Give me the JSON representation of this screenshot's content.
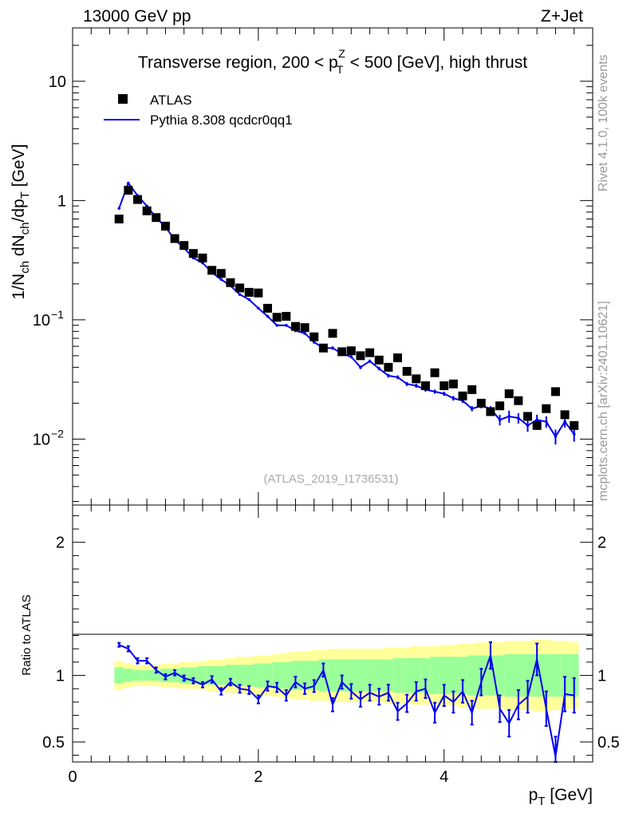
{
  "header": {
    "left": "13000 GeV pp",
    "right": "Z+Jet"
  },
  "side_labels": {
    "rivet": "Rivet 4.1.0,  100k events",
    "mcplots": "mcplots.cern.ch [arXiv:2401.10621]"
  },
  "chart_data": [
    {
      "type": "scatter",
      "title": "Transverse region, 200 < p_T^Z < 500 [GeV], high thrust",
      "title_parts": {
        "pre": "Transverse region, 200 < p",
        "sup": "Z",
        "sub": "T",
        "post": " < 500 [GeV], high thrust"
      },
      "ylabel": "1/N_ch dN_ch/dp_T [GeV]",
      "ylabel_parts": [
        "1/N",
        "ch",
        " dN",
        "ch",
        "/dp",
        "T",
        " [GeV]"
      ],
      "yscale": "log",
      "ylim": [
        0.0028,
        28
      ],
      "xlim": [
        0,
        5.6
      ],
      "y_ticks": [
        {
          "value": 10,
          "label": "10"
        },
        {
          "value": 1,
          "label": "1"
        },
        {
          "value": 0.1,
          "label": "10",
          "sup": "−1"
        },
        {
          "value": 0.01,
          "label": "10",
          "sup": "−2"
        }
      ],
      "watermark": "(ATLAS_2019_I1736531)",
      "legend": [
        {
          "label": "ATLAS",
          "marker": "square",
          "color": "#000000"
        },
        {
          "label": "Pythia 8.308 qcdcr0qq1",
          "marker": "line",
          "color": "#0000ee"
        }
      ],
      "x": [
        0.5,
        0.6,
        0.7,
        0.8,
        0.9,
        1.0,
        1.1,
        1.2,
        1.3,
        1.4,
        1.5,
        1.6,
        1.7,
        1.8,
        1.9,
        2.0,
        2.1,
        2.2,
        2.3,
        2.4,
        2.5,
        2.6,
        2.7,
        2.8,
        2.9,
        3.0,
        3.1,
        3.2,
        3.3,
        3.4,
        3.5,
        3.6,
        3.7,
        3.8,
        3.9,
        4.0,
        4.1,
        4.2,
        4.3,
        4.4,
        4.5,
        4.6,
        4.7,
        4.8,
        4.9,
        5.0,
        5.1,
        5.2,
        5.3,
        5.4
      ],
      "series": [
        {
          "name": "ATLAS",
          "values": [
            0.7,
            1.22,
            1.02,
            0.82,
            0.72,
            0.61,
            0.48,
            0.42,
            0.36,
            0.33,
            0.26,
            0.245,
            0.205,
            0.185,
            0.17,
            0.168,
            0.125,
            0.105,
            0.107,
            0.088,
            0.086,
            0.072,
            0.058,
            0.077,
            0.054,
            0.055,
            0.05,
            0.053,
            0.046,
            0.04,
            0.048,
            0.037,
            0.032,
            0.028,
            0.036,
            0.028,
            0.029,
            0.023,
            0.026,
            0.02,
            0.017,
            0.019,
            0.024,
            0.021,
            0.0155,
            0.013,
            0.018,
            0.025,
            0.016,
            0.013
          ]
        },
        {
          "name": "Pythia 8.308 qcdcr0qq1",
          "values": [
            0.86,
            1.4,
            1.1,
            0.9,
            0.72,
            0.6,
            0.47,
            0.4,
            0.33,
            0.3,
            0.25,
            0.218,
            0.193,
            0.163,
            0.148,
            0.125,
            0.107,
            0.09,
            0.09,
            0.081,
            0.077,
            0.065,
            0.058,
            0.058,
            0.052,
            0.049,
            0.04,
            0.045,
            0.039,
            0.034,
            0.033,
            0.029,
            0.028,
            0.026,
            0.025,
            0.024,
            0.022,
            0.021,
            0.018,
            0.019,
            0.018,
            0.0145,
            0.0155,
            0.015,
            0.013,
            0.0145,
            0.014,
            0.0105,
            0.014,
            0.011
          ],
          "errors": [
            0.01,
            0.02,
            0.015,
            0.012,
            0.01,
            0.008,
            0.007,
            0.006,
            0.005,
            0.005,
            0.004,
            0.004,
            0.0035,
            0.003,
            0.003,
            0.0025,
            0.002,
            0.002,
            0.002,
            0.002,
            0.002,
            0.0018,
            0.0015,
            0.0018,
            0.0015,
            0.0015,
            0.0014,
            0.0014,
            0.0013,
            0.0012,
            0.0012,
            0.0011,
            0.0011,
            0.001,
            0.001,
            0.001,
            0.001,
            0.0009,
            0.0009,
            0.0009,
            0.0009,
            0.0015,
            0.0018,
            0.0015,
            0.0015,
            0.0015,
            0.0015,
            0.0015,
            0.0015,
            0.0015
          ]
        }
      ]
    },
    {
      "type": "line",
      "ylabel": "Ratio to ATLAS",
      "xlabel": "p_T [GeV]",
      "xlabel_parts": [
        "p",
        "T",
        " [GeV]"
      ],
      "xlim": [
        0,
        5.6
      ],
      "ylim": [
        0.35,
        2.28
      ],
      "x_ticks": [
        0,
        2,
        4
      ],
      "y_ticks": [
        {
          "value": 2,
          "label": "2"
        },
        {
          "value": 1,
          "label": "1"
        },
        {
          "value": 0.5,
          "label": "0.5"
        }
      ],
      "x": [
        0.5,
        0.6,
        0.7,
        0.8,
        0.9,
        1.0,
        1.1,
        1.2,
        1.3,
        1.4,
        1.5,
        1.6,
        1.7,
        1.8,
        1.9,
        2.0,
        2.1,
        2.2,
        2.3,
        2.4,
        2.5,
        2.6,
        2.7,
        2.8,
        2.9,
        3.0,
        3.1,
        3.2,
        3.3,
        3.4,
        3.5,
        3.6,
        3.7,
        3.8,
        3.9,
        4.0,
        4.1,
        4.2,
        4.3,
        4.4,
        4.5,
        4.6,
        4.7,
        4.8,
        4.9,
        5.0,
        5.1,
        5.2,
        5.3,
        5.4
      ],
      "band_green": [
        0.06,
        0.05,
        0.04,
        0.04,
        0.04,
        0.05,
        0.05,
        0.06,
        0.06,
        0.07,
        0.07,
        0.07,
        0.08,
        0.08,
        0.08,
        0.09,
        0.09,
        0.1,
        0.1,
        0.11,
        0.11,
        0.11,
        0.12,
        0.12,
        0.12,
        0.12,
        0.12,
        0.12,
        0.12,
        0.12,
        0.13,
        0.13,
        0.13,
        0.13,
        0.14,
        0.14,
        0.14,
        0.14,
        0.15,
        0.15,
        0.15,
        0.15,
        0.16,
        0.16,
        0.16,
        0.16,
        0.16,
        0.16,
        0.16,
        0.16
      ],
      "band_yellow": [
        0.11,
        0.09,
        0.08,
        0.08,
        0.08,
        0.09,
        0.09,
        0.1,
        0.1,
        0.11,
        0.12,
        0.12,
        0.13,
        0.14,
        0.14,
        0.15,
        0.15,
        0.16,
        0.17,
        0.18,
        0.18,
        0.19,
        0.19,
        0.2,
        0.2,
        0.2,
        0.2,
        0.2,
        0.2,
        0.21,
        0.21,
        0.21,
        0.22,
        0.22,
        0.22,
        0.23,
        0.23,
        0.24,
        0.24,
        0.25,
        0.25,
        0.25,
        0.26,
        0.26,
        0.26,
        0.27,
        0.27,
        0.26,
        0.26,
        0.25
      ],
      "series": [
        {
          "name": "Pythia 8.308 qcdcr0qq1",
          "values": [
            1.23,
            1.2,
            1.11,
            1.11,
            1.04,
            0.99,
            1.02,
            0.98,
            0.96,
            0.93,
            0.97,
            0.88,
            0.95,
            0.9,
            0.89,
            0.82,
            0.92,
            0.91,
            0.85,
            0.95,
            0.9,
            0.92,
            1.04,
            0.78,
            0.95,
            0.88,
            0.82,
            0.87,
            0.84,
            0.87,
            0.73,
            0.79,
            0.88,
            0.9,
            0.72,
            0.85,
            0.8,
            0.88,
            0.72,
            0.95,
            1.15,
            0.75,
            0.64,
            0.78,
            0.84,
            1.12,
            0.75,
            0.39,
            0.86,
            0.85
          ],
          "errors": [
            0.015,
            0.02,
            0.02,
            0.02,
            0.02,
            0.02,
            0.02,
            0.02,
            0.02,
            0.02,
            0.025,
            0.025,
            0.025,
            0.03,
            0.03,
            0.03,
            0.035,
            0.035,
            0.04,
            0.04,
            0.04,
            0.045,
            0.05,
            0.05,
            0.05,
            0.055,
            0.055,
            0.06,
            0.06,
            0.06,
            0.065,
            0.065,
            0.07,
            0.07,
            0.075,
            0.08,
            0.08,
            0.085,
            0.09,
            0.1,
            0.1,
            0.1,
            0.1,
            0.11,
            0.12,
            0.12,
            0.13,
            0.15,
            0.13,
            0.13
          ]
        }
      ]
    }
  ]
}
